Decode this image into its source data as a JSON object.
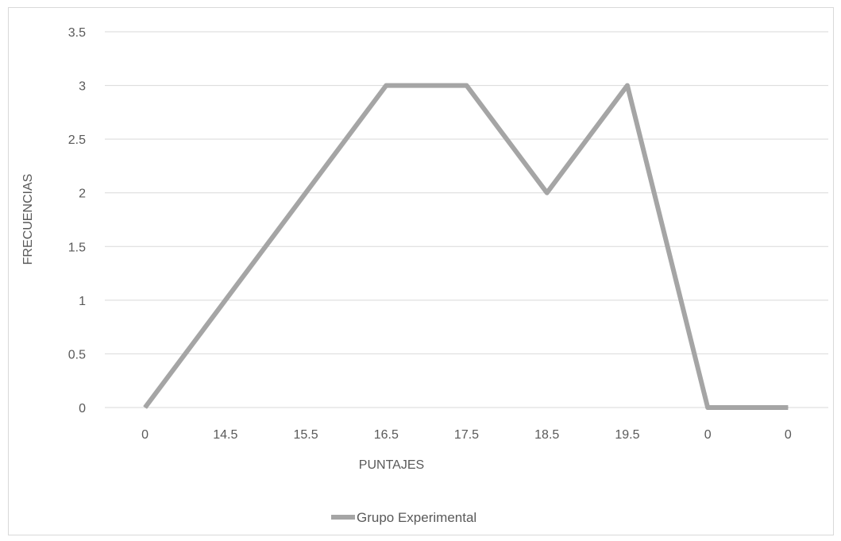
{
  "chart_data": {
    "type": "line",
    "categories": [
      "0",
      "14.5",
      "15.5",
      "16.5",
      "17.5",
      "18.5",
      "19.5",
      "0",
      "0"
    ],
    "series": [
      {
        "name": "Grupo Experimental",
        "values": [
          0,
          1,
          2,
          3,
          3,
          2,
          3,
          0,
          0
        ],
        "color": "#a5a5a5"
      }
    ],
    "xlabel": "PUNTAJES",
    "ylabel": "FRECUENCIAS",
    "ylim": [
      0,
      3.5
    ],
    "yticks": [
      "0",
      "0.5",
      "1",
      "1.5",
      "2",
      "2.5",
      "3",
      "3.5"
    ],
    "grid": true,
    "legend_position": "bottom",
    "gridline_color": "#d9d9d9",
    "text_color": "#595959"
  }
}
